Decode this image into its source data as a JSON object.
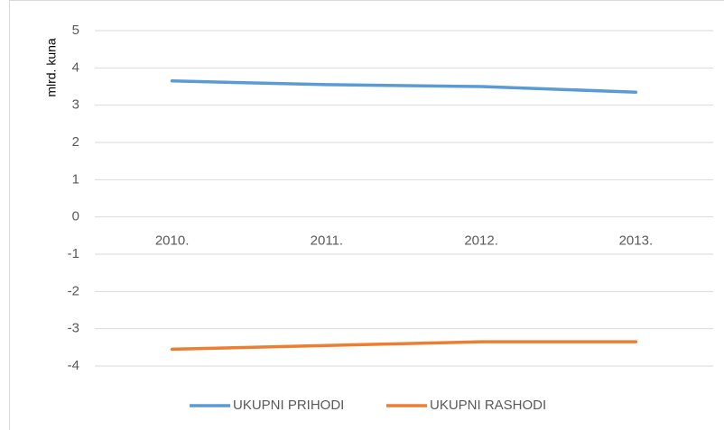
{
  "chart_data": {
    "type": "line",
    "y_label": "mlrd. kuna",
    "categories": [
      "2010.",
      "2011.",
      "2012.",
      "2013."
    ],
    "series": [
      {
        "name": "UKUPNI PRIHODI",
        "color": "#5b9bd5",
        "values": [
          3.65,
          3.55,
          3.5,
          3.35
        ]
      },
      {
        "name": "UKUPNI RASHODI",
        "color": "#ed7d31",
        "values": [
          -3.55,
          -3.45,
          -3.35,
          -3.35
        ]
      }
    ],
    "ylim": [
      -4,
      5
    ],
    "yticks": [
      -4,
      -3,
      -2,
      -1,
      0,
      1,
      2,
      3,
      4,
      5
    ],
    "grid": true,
    "legend": "bottom"
  }
}
